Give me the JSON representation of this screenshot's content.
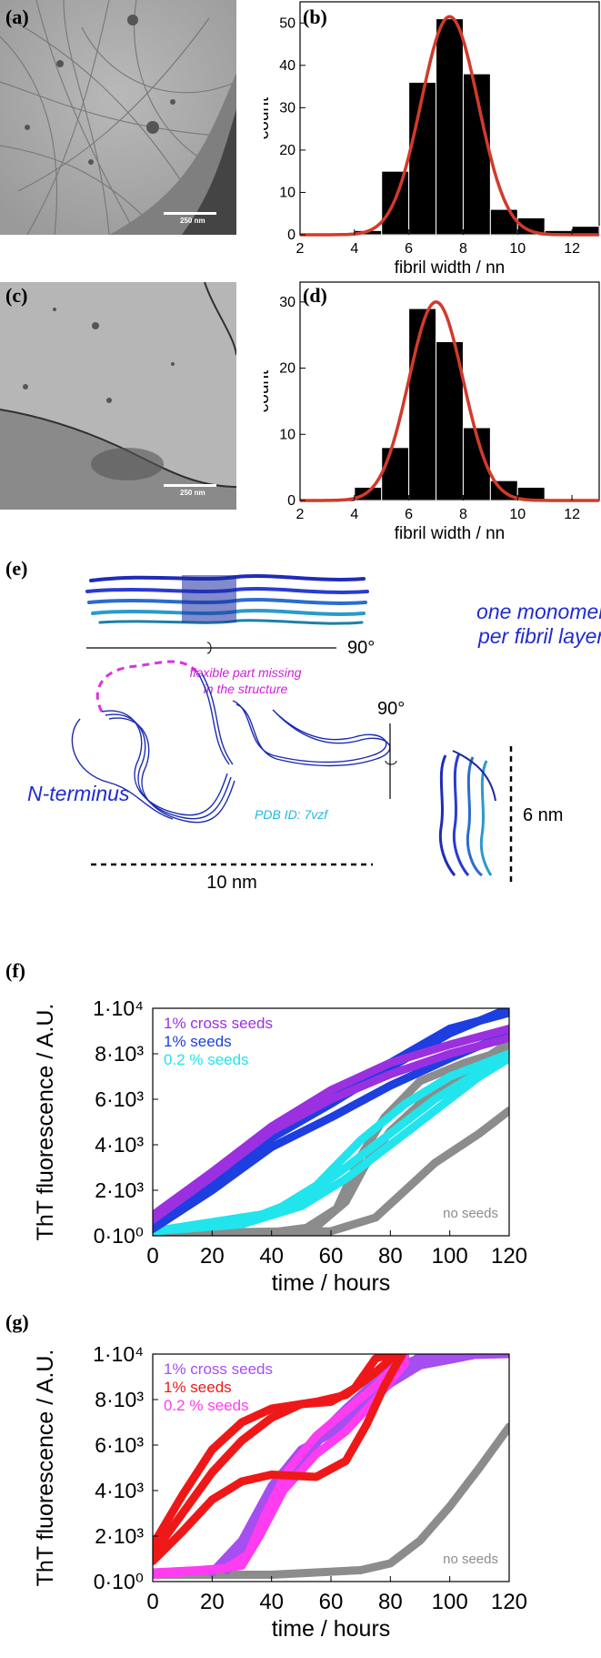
{
  "panels": {
    "a": {
      "label": "(a)",
      "scale_text": "250 nm"
    },
    "b": {
      "label": "(b)"
    },
    "c": {
      "label": "(c)",
      "scale_text": "250 nm"
    },
    "d": {
      "label": "(d)"
    },
    "e": {
      "label": "(e)",
      "monomer_text": [
        "one monomer",
        "per fibril layer"
      ],
      "flexible_text": [
        "flexible part missing",
        "in the structure"
      ],
      "nterm_text": "N-terminus",
      "pdb_text": "PDB ID: 7vzf",
      "rot1": "90°",
      "rot2": "90°",
      "width_label": "10 nm",
      "height_label": "6 nm"
    },
    "f": {
      "label": "(f)"
    },
    "g": {
      "label": "(g)"
    }
  },
  "chart_data": [
    {
      "id": "b",
      "type": "bar",
      "xlabel": "fibril width / nn",
      "ylabel": "count",
      "xlim": [
        2,
        13
      ],
      "ylim": [
        0,
        55
      ],
      "xticks": [
        2,
        4,
        6,
        8,
        10,
        12
      ],
      "yticks": [
        0,
        10,
        20,
        30,
        40,
        50
      ],
      "bin_width": 1,
      "bins": [
        4.5,
        5.5,
        6.5,
        7.5,
        8.5,
        9.5,
        10.5,
        11.5,
        12.5
      ],
      "values": [
        1,
        15,
        36,
        51,
        38,
        6,
        4,
        1,
        2
      ],
      "fit": {
        "type": "gaussian",
        "center": 7.5,
        "sigma": 1.05,
        "peak": 51.5,
        "color": "#d23a2b"
      }
    },
    {
      "id": "d",
      "type": "bar",
      "xlabel": "fibril width / nn",
      "ylabel": "count",
      "xlim": [
        2,
        13
      ],
      "ylim": [
        0,
        33
      ],
      "xticks": [
        2,
        4,
        6,
        8,
        10,
        12
      ],
      "yticks": [
        0,
        10,
        20,
        30
      ],
      "bin_width": 1,
      "bins": [
        4.5,
        5.5,
        6.5,
        7.5,
        8.5,
        9.5,
        10.5
      ],
      "values": [
        2,
        8,
        29,
        24,
        11,
        3,
        2
      ],
      "fit": {
        "type": "gaussian",
        "center": 7.0,
        "sigma": 1.0,
        "peak": 30,
        "color": "#d23a2b"
      }
    },
    {
      "id": "f",
      "type": "scatter",
      "xlabel": "time / hours",
      "ylabel": "ThT fluorescence / A.U.",
      "xlim": [
        0,
        120
      ],
      "ylim": [
        0,
        10000
      ],
      "xticks": [
        0,
        20,
        40,
        60,
        80,
        100,
        120
      ],
      "yticks": [
        "0·10⁰",
        "2·10³",
        "4·10³",
        "6·10³",
        "8·10³",
        "1·10⁴"
      ],
      "series": [
        {
          "name": "no seeds",
          "color": "#8c8c8c",
          "curves": [
            [
              [
                0,
                100
              ],
              [
                40,
                150
              ],
              [
                55,
                400
              ],
              [
                65,
                1500
              ],
              [
                72,
                3200
              ],
              [
                80,
                4600
              ],
              [
                90,
                5800
              ],
              [
                105,
                7200
              ],
              [
                120,
                8500
              ]
            ],
            [
              [
                0,
                100
              ],
              [
                60,
                200
              ],
              [
                75,
                800
              ],
              [
                85,
                2000
              ],
              [
                95,
                3200
              ],
              [
                110,
                4500
              ],
              [
                120,
                5500
              ]
            ],
            [
              [
                0,
                100
              ],
              [
                50,
                200
              ],
              [
                62,
                1200
              ],
              [
                70,
                3500
              ],
              [
                78,
                5200
              ],
              [
                90,
                6800
              ],
              [
                105,
                7600
              ],
              [
                120,
                8200
              ]
            ]
          ]
        },
        {
          "name": "0.2 % seeds",
          "color": "#22e4ec",
          "curves": [
            [
              [
                0,
                200
              ],
              [
                30,
                600
              ],
              [
                50,
                1600
              ],
              [
                65,
                3000
              ],
              [
                80,
                4500
              ],
              [
                95,
                6000
              ],
              [
                110,
                7200
              ],
              [
                120,
                8000
              ]
            ],
            [
              [
                0,
                200
              ],
              [
                30,
                500
              ],
              [
                50,
                1300
              ],
              [
                65,
                2500
              ],
              [
                80,
                4000
              ],
              [
                95,
                5500
              ],
              [
                110,
                7000
              ],
              [
                120,
                7800
              ]
            ],
            [
              [
                0,
                200
              ],
              [
                40,
                1000
              ],
              [
                55,
                2200
              ],
              [
                70,
                4200
              ],
              [
                85,
                5800
              ],
              [
                100,
                7000
              ],
              [
                120,
                8000
              ]
            ]
          ]
        },
        {
          "name": "1% seeds",
          "color": "#1d3ee0",
          "curves": [
            [
              [
                0,
                400
              ],
              [
                20,
                2300
              ],
              [
                40,
                4300
              ],
              [
                60,
                5800
              ],
              [
                80,
                7400
              ],
              [
                100,
                8900
              ],
              [
                120,
                10000
              ]
            ],
            [
              [
                0,
                300
              ],
              [
                20,
                2000
              ],
              [
                40,
                3900
              ],
              [
                60,
                5200
              ],
              [
                80,
                6600
              ],
              [
                100,
                7800
              ],
              [
                120,
                8900
              ]
            ],
            [
              [
                0,
                500
              ],
              [
                20,
                2400
              ],
              [
                40,
                4500
              ],
              [
                60,
                6100
              ],
              [
                80,
                7600
              ],
              [
                100,
                9100
              ],
              [
                120,
                9800
              ]
            ]
          ]
        },
        {
          "name": "1% cross seeds",
          "color": "#9b30e0",
          "curves": [
            [
              [
                0,
                700
              ],
              [
                20,
                2600
              ],
              [
                40,
                4600
              ],
              [
                60,
                6000
              ],
              [
                80,
                7100
              ],
              [
                100,
                8000
              ],
              [
                120,
                8700
              ]
            ],
            [
              [
                0,
                900
              ],
              [
                20,
                2800
              ],
              [
                40,
                4800
              ],
              [
                60,
                6400
              ],
              [
                80,
                7600
              ],
              [
                100,
                8400
              ],
              [
                120,
                9100
              ]
            ]
          ]
        }
      ],
      "annotation": "no seeds"
    },
    {
      "id": "g",
      "type": "scatter",
      "xlabel": "time / hours",
      "ylabel": "ThT fluorescence / A.U.",
      "xlim": [
        0,
        120
      ],
      "ylim": [
        0,
        10000
      ],
      "xticks": [
        0,
        20,
        40,
        60,
        80,
        100,
        120
      ],
      "yticks": [
        "0·10⁰",
        "2·10³",
        "4·10³",
        "6·10³",
        "8·10³",
        "1·10⁴"
      ],
      "series": [
        {
          "name": "no seeds",
          "color": "#8c8c8c",
          "curves": [
            [
              [
                0,
                300
              ],
              [
                40,
                300
              ],
              [
                70,
                500
              ],
              [
                80,
                800
              ],
              [
                90,
                1800
              ],
              [
                100,
                3300
              ],
              [
                110,
                5000
              ],
              [
                120,
                6800
              ]
            ]
          ]
        },
        {
          "name": "1% cross seeds",
          "color": "#a64ef0",
          "curves": [
            [
              [
                20,
                400
              ],
              [
                30,
                1800
              ],
              [
                40,
                4200
              ],
              [
                50,
                5800
              ],
              [
                60,
                6500
              ],
              [
                70,
                7600
              ],
              [
                80,
                8700
              ],
              [
                90,
                9500
              ],
              [
                110,
                10000
              ],
              [
                120,
                10000
              ]
            ],
            [
              [
                25,
                500
              ],
              [
                35,
                2500
              ],
              [
                45,
                4800
              ],
              [
                55,
                6300
              ],
              [
                65,
                7600
              ],
              [
                80,
                9400
              ],
              [
                95,
                10000
              ],
              [
                120,
                10000
              ]
            ],
            [
              [
                30,
                800
              ],
              [
                40,
                3200
              ],
              [
                50,
                5300
              ],
              [
                60,
                6800
              ],
              [
                75,
                8600
              ],
              [
                90,
                9900
              ],
              [
                120,
                10000
              ]
            ]
          ]
        },
        {
          "name": "0.2 % seeds",
          "color": "#ff3cf0",
          "curves": [
            [
              [
                0,
                400
              ],
              [
                15,
                500
              ],
              [
                25,
                600
              ],
              [
                32,
                1200
              ],
              [
                38,
                3000
              ],
              [
                45,
                4800
              ],
              [
                55,
                6400
              ],
              [
                65,
                7500
              ],
              [
                75,
                8600
              ],
              [
                85,
                9900
              ]
            ],
            [
              [
                0,
                300
              ],
              [
                20,
                500
              ],
              [
                30,
                700
              ],
              [
                36,
                2000
              ],
              [
                44,
                4000
              ],
              [
                55,
                5600
              ],
              [
                65,
                6600
              ],
              [
                75,
                8000
              ],
              [
                85,
                9600
              ]
            ]
          ]
        },
        {
          "name": "1% seeds",
          "color": "#ef1818",
          "curves": [
            [
              [
                0,
                1200
              ],
              [
                10,
                3000
              ],
              [
                20,
                4800
              ],
              [
                30,
                6200
              ],
              [
                40,
                7200
              ],
              [
                50,
                7800
              ],
              [
                60,
                7900
              ],
              [
                68,
                8500
              ],
              [
                75,
                9800
              ],
              [
                80,
                10000
              ]
            ],
            [
              [
                0,
                900
              ],
              [
                10,
                2200
              ],
              [
                20,
                3600
              ],
              [
                30,
                4400
              ],
              [
                40,
                4700
              ],
              [
                55,
                4600
              ],
              [
                65,
                5300
              ],
              [
                72,
                6900
              ],
              [
                78,
                8600
              ],
              [
                84,
                10000
              ]
            ],
            [
              [
                0,
                1600
              ],
              [
                10,
                3800
              ],
              [
                20,
                5800
              ],
              [
                30,
                7000
              ],
              [
                40,
                7600
              ],
              [
                55,
                7900
              ],
              [
                65,
                8200
              ],
              [
                75,
                9200
              ],
              [
                82,
                10000
              ]
            ]
          ]
        }
      ],
      "annotation": "no seeds"
    }
  ]
}
